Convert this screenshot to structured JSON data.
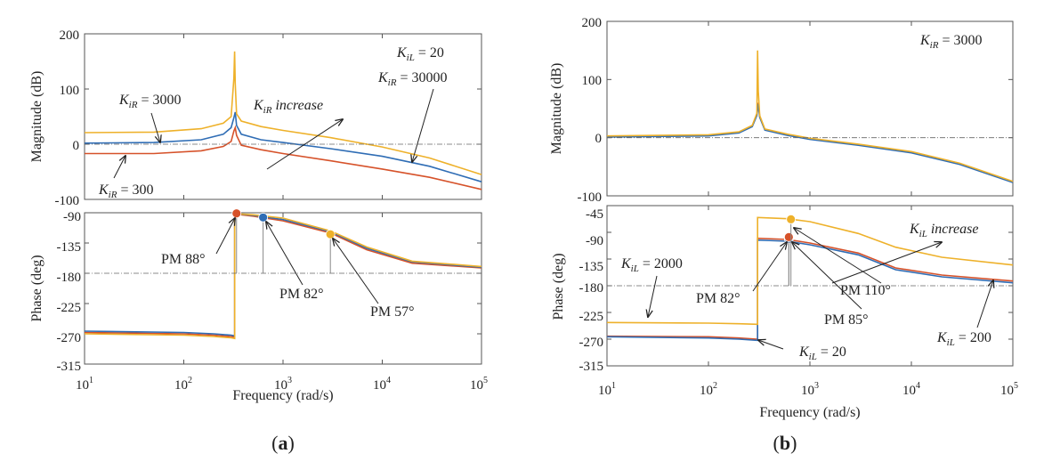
{
  "colors": {
    "blue": "#2f6db5",
    "red": "#d6522a",
    "orange": "#eeb12a",
    "frame": "#555555"
  },
  "figure_labels": {
    "a": {
      "open": "(",
      "letter": "a",
      "close": ")"
    },
    "b": {
      "open": "(",
      "letter": "b",
      "close": ")"
    }
  },
  "chart_data": [
    {
      "id": "a-mag",
      "type": "line",
      "xscale": "log",
      "xlim": [
        10,
        100000
      ],
      "ylim": [
        -100,
        200
      ],
      "ylabel": "Magnitude (dB)",
      "xlabel": "",
      "yticks": [
        -100,
        0,
        100,
        200
      ],
      "yticklabels": [
        "-100",
        "0",
        "100",
        "200"
      ],
      "xticks": [
        10,
        100,
        1000,
        10000,
        100000
      ],
      "xticklabels": [],
      "reference_line": 0,
      "series": [
        {
          "name": "K_iR = 300",
          "color": "red",
          "points": [
            [
              10,
              -17
            ],
            [
              50,
              -17
            ],
            [
              150,
              -12
            ],
            [
              250,
              -4
            ],
            [
              300,
              5
            ],
            [
              320,
              24
            ],
            [
              330,
              30
            ],
            [
              340,
              16
            ],
            [
              380,
              -2
            ],
            [
              600,
              -10
            ],
            [
              1000,
              -17
            ],
            [
              3000,
              -30
            ],
            [
              10000,
              -45
            ],
            [
              30000,
              -60
            ],
            [
              100000,
              -82
            ]
          ]
        },
        {
          "name": "K_iR = 3000",
          "color": "blue",
          "points": [
            [
              10,
              2
            ],
            [
              50,
              3
            ],
            [
              150,
              8
            ],
            [
              250,
              18
            ],
            [
              300,
              30
            ],
            [
              320,
              48
            ],
            [
              330,
              58
            ],
            [
              340,
              34
            ],
            [
              380,
              18
            ],
            [
              600,
              8
            ],
            [
              1000,
              3
            ],
            [
              3000,
              -8
            ],
            [
              10000,
              -22
            ],
            [
              30000,
              -40
            ],
            [
              100000,
              -68
            ]
          ]
        },
        {
          "name": "K_iR = 30000",
          "color": "orange",
          "points": [
            [
              10,
              21
            ],
            [
              50,
              22
            ],
            [
              150,
              28
            ],
            [
              250,
              38
            ],
            [
              300,
              50
            ],
            [
              320,
              120
            ],
            [
              325,
              168
            ],
            [
              330,
              110
            ],
            [
              340,
              55
            ],
            [
              380,
              42
            ],
            [
              600,
              32
            ],
            [
              1000,
              25
            ],
            [
              3000,
              12
            ],
            [
              10000,
              -5
            ],
            [
              30000,
              -25
            ],
            [
              100000,
              -55
            ]
          ]
        }
      ],
      "annotations": [
        {
          "lead": "K",
          "sub": "iL",
          "rest": " = 20"
        },
        {
          "lead": "K",
          "sub": "iR",
          "rest": " = 3000"
        },
        {
          "lead": "K",
          "sub": "iR",
          "rest": " increase"
        },
        {
          "lead": "K",
          "sub": "iR",
          "rest": " = 30000"
        },
        {
          "lead": "K",
          "sub": "iR",
          "rest": " = 300"
        }
      ]
    },
    {
      "id": "a-phase",
      "type": "line",
      "xscale": "log",
      "xlim": [
        10,
        100000
      ],
      "ylim": [
        -315,
        -90
      ],
      "ylabel": "Phase (deg)",
      "xlabel": "Frequency (rad/s)",
      "yticks": [
        -315,
        -270,
        -225,
        -180,
        -135,
        -90
      ],
      "yticklabels": [
        "-315",
        "-270",
        "-225",
        "-180",
        "-135",
        "-90"
      ],
      "xticks": [
        10,
        100,
        1000,
        10000,
        100000
      ],
      "xticklabels": [
        {
          "base": "10",
          "exp": "1"
        },
        {
          "base": "10",
          "exp": "2"
        },
        {
          "base": "10",
          "exp": "3"
        },
        {
          "base": "10",
          "exp": "4"
        },
        {
          "base": "10",
          "exp": "5"
        }
      ],
      "reference_line": -180,
      "series": [
        {
          "name": "K_iR = 300",
          "color": "red",
          "points": [
            [
              10,
              -268
            ],
            [
              100,
              -270
            ],
            [
              200,
              -272
            ],
            [
              300,
              -274
            ],
            [
              326,
              -275
            ],
            [
              326,
              -92
            ],
            [
              500,
              -95
            ],
            [
              1000,
              -102
            ],
            [
              3000,
              -120
            ],
            [
              7000,
              -145
            ],
            [
              20000,
              -165
            ],
            [
              100000,
              -172
            ]
          ]
        },
        {
          "name": "K_iR = 3000",
          "color": "blue",
          "points": [
            [
              10,
              -266
            ],
            [
              100,
              -268
            ],
            [
              200,
              -270
            ],
            [
              300,
              -272
            ],
            [
              326,
              -273
            ],
            [
              326,
              -91
            ],
            [
              500,
              -94
            ],
            [
              1000,
              -100
            ],
            [
              3000,
              -118
            ],
            [
              7000,
              -143
            ],
            [
              20000,
              -163
            ],
            [
              100000,
              -171
            ]
          ]
        },
        {
          "name": "K_iR = 30000",
          "color": "orange",
          "points": [
            [
              10,
              -270
            ],
            [
              100,
              -272
            ],
            [
              200,
              -274
            ],
            [
              300,
              -276
            ],
            [
              326,
              -277
            ],
            [
              326,
              -90
            ],
            [
              500,
              -93
            ],
            [
              1000,
              -98
            ],
            [
              3000,
              -117
            ],
            [
              7000,
              -141
            ],
            [
              20000,
              -162
            ],
            [
              100000,
              -170
            ]
          ]
        }
      ],
      "markers": [
        {
          "x": 340,
          "y": -91,
          "color": "red",
          "label": "PM 88°"
        },
        {
          "x": 630,
          "y": -97,
          "color": "blue",
          "label": "PM 82°"
        },
        {
          "x": 3000,
          "y": -122,
          "color": "orange",
          "label": "PM 57°"
        }
      ]
    },
    {
      "id": "b-mag",
      "type": "line",
      "xscale": "log",
      "xlim": [
        10,
        100000
      ],
      "ylim": [
        -100,
        200
      ],
      "ylabel": "Magnitude (dB)",
      "xlabel": "",
      "yticks": [
        -100,
        0,
        100,
        200
      ],
      "yticklabels": [
        "-100",
        "0",
        "100",
        "200"
      ],
      "xticks": [
        10,
        100,
        1000,
        10000,
        100000
      ],
      "xticklabels": [],
      "reference_line": 0,
      "series": [
        {
          "name": "K_iL = 20",
          "color": "red",
          "points": [
            [
              10,
              2
            ],
            [
              100,
              4
            ],
            [
              200,
              9
            ],
            [
              270,
              20
            ],
            [
              300,
              40
            ],
            [
              310,
              60
            ],
            [
              320,
              36
            ],
            [
              360,
              14
            ],
            [
              600,
              5
            ],
            [
              1000,
              -2
            ],
            [
              3000,
              -12
            ],
            [
              10000,
              -25
            ],
            [
              30000,
              -45
            ],
            [
              100000,
              -76
            ]
          ]
        },
        {
          "name": "K_iL = 200",
          "color": "blue",
          "points": [
            [
              10,
              1
            ],
            [
              100,
              3
            ],
            [
              200,
              8
            ],
            [
              270,
              19
            ],
            [
              300,
              38
            ],
            [
              310,
              58
            ],
            [
              320,
              35
            ],
            [
              360,
              13
            ],
            [
              600,
              4
            ],
            [
              1000,
              -3
            ],
            [
              3000,
              -13
            ],
            [
              10000,
              -26
            ],
            [
              30000,
              -46
            ],
            [
              100000,
              -77
            ]
          ]
        },
        {
          "name": "K_iL = 2000",
          "color": "orange",
          "points": [
            [
              10,
              3
            ],
            [
              100,
              5
            ],
            [
              200,
              10
            ],
            [
              270,
              21
            ],
            [
              300,
              42
            ],
            [
              305,
              150
            ],
            [
              310,
              80
            ],
            [
              320,
              38
            ],
            [
              360,
              15
            ],
            [
              600,
              6
            ],
            [
              1000,
              -1
            ],
            [
              3000,
              -11
            ],
            [
              10000,
              -24
            ],
            [
              30000,
              -44
            ],
            [
              100000,
              -75
            ]
          ]
        }
      ],
      "annotations": [
        {
          "lead": "K",
          "sub": "iR",
          "rest": " = 3000"
        }
      ]
    },
    {
      "id": "b-phase",
      "type": "line",
      "xscale": "log",
      "xlim": [
        10,
        100000
      ],
      "ylim": [
        -315,
        -45
      ],
      "ylabel": "Phase (deg)",
      "xlabel": "Frequency (rad/s)",
      "yticks": [
        -315,
        -270,
        -225,
        -180,
        -135,
        -90,
        -45
      ],
      "yticklabels": [
        "-315",
        "-270",
        "-225",
        "-180",
        "-135",
        "-90",
        "-45"
      ],
      "xticks": [
        10,
        100,
        1000,
        10000,
        100000
      ],
      "xticklabels": [
        {
          "base": "10",
          "exp": "1"
        },
        {
          "base": "10",
          "exp": "2"
        },
        {
          "base": "10",
          "exp": "3"
        },
        {
          "base": "10",
          "exp": "4"
        },
        {
          "base": "10",
          "exp": "5"
        }
      ],
      "reference_line": -180,
      "series": [
        {
          "name": "K_iL = 20",
          "color": "red",
          "points": [
            [
              10,
              -265
            ],
            [
              100,
              -266
            ],
            [
              200,
              -268
            ],
            [
              300,
              -270
            ],
            [
              305,
              -270
            ],
            [
              305,
              -100
            ],
            [
              600,
              -102
            ],
            [
              1000,
              -108
            ],
            [
              3000,
              -125
            ],
            [
              7000,
              -150
            ],
            [
              20000,
              -162
            ],
            [
              100000,
              -172
            ]
          ]
        },
        {
          "name": "K_iL = 200",
          "color": "blue",
          "points": [
            [
              10,
              -266
            ],
            [
              100,
              -268
            ],
            [
              200,
              -270
            ],
            [
              300,
              -272
            ],
            [
              305,
              -272
            ],
            [
              305,
              -103
            ],
            [
              600,
              -105
            ],
            [
              1000,
              -111
            ],
            [
              3000,
              -128
            ],
            [
              7000,
              -153
            ],
            [
              20000,
              -165
            ],
            [
              100000,
              -175
            ]
          ]
        },
        {
          "name": "K_iL = 2000",
          "color": "orange",
          "points": [
            [
              10,
              -242
            ],
            [
              100,
              -243
            ],
            [
              200,
              -244
            ],
            [
              300,
              -245
            ],
            [
              305,
              -245
            ],
            [
              305,
              -65
            ],
            [
              600,
              -67
            ],
            [
              1000,
              -72
            ],
            [
              3000,
              -92
            ],
            [
              7000,
              -115
            ],
            [
              20000,
              -132
            ],
            [
              100000,
              -145
            ]
          ]
        }
      ],
      "markers": [
        {
          "x": 620,
          "y": -101,
          "color": "blue",
          "label": "PM 82°"
        },
        {
          "x": 620,
          "y": -98,
          "color": "red",
          "label": "PM 85°"
        },
        {
          "x": 650,
          "y": -68,
          "color": "orange",
          "label": "PM 110°"
        }
      ],
      "annotations": [
        {
          "lead": "K",
          "sub": "iL",
          "rest": " increase"
        },
        {
          "lead": "K",
          "sub": "iL",
          "rest": " = 2000"
        },
        {
          "lead": "K",
          "sub": "iL",
          "rest": " = 20"
        },
        {
          "lead": "K",
          "sub": "iL",
          "rest": " = 200"
        }
      ]
    }
  ]
}
